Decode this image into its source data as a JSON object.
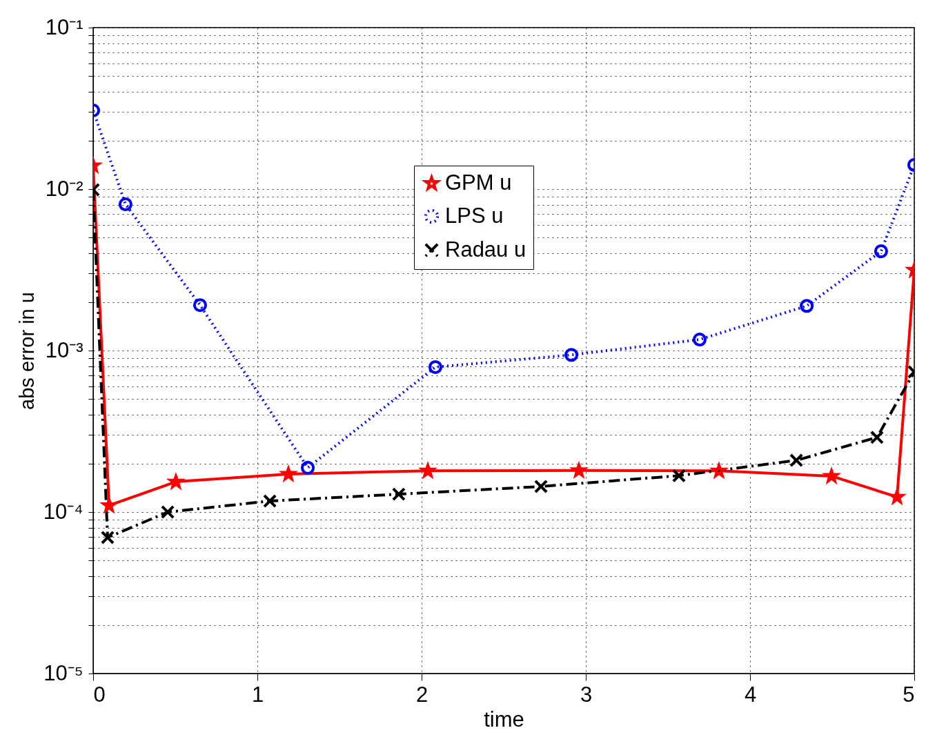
{
  "chart_data": {
    "type": "line",
    "xlabel": "time",
    "ylabel": "abs error in u",
    "log": "y",
    "grid": true,
    "legend": "top",
    "xlim": [
      0,
      5
    ],
    "xticks": [
      0,
      1,
      2,
      3,
      4,
      5
    ],
    "ylim": [
      1e-05,
      0.1
    ],
    "yticks": [
      {
        "value": 1e-05,
        "label": "10⁻⁵"
      },
      {
        "value": 2e-05,
        "label": null
      },
      {
        "value": 3e-05,
        "label": null
      },
      {
        "value": 4e-05,
        "label": null
      },
      {
        "value": 5e-05,
        "label": null
      },
      {
        "value": 6e-05,
        "label": null
      },
      {
        "value": 7e-05,
        "label": null
      },
      {
        "value": 8e-05,
        "label": null
      },
      {
        "value": 9e-05,
        "label": null
      },
      {
        "value": 0.0001,
        "label": "10⁻⁴"
      },
      {
        "value": 0.0002,
        "label": null
      },
      {
        "value": 0.0003,
        "label": null
      },
      {
        "value": 0.0004,
        "label": null
      },
      {
        "value": 0.0005,
        "label": null
      },
      {
        "value": 0.0006,
        "label": null
      },
      {
        "value": 0.0007,
        "label": null
      },
      {
        "value": 0.0008,
        "label": null
      },
      {
        "value": 0.0009,
        "label": null
      },
      {
        "value": 0.001,
        "label": "10⁻³"
      },
      {
        "value": 0.002,
        "label": null
      },
      {
        "value": 0.003,
        "label": null
      },
      {
        "value": 0.004,
        "label": null
      },
      {
        "value": 0.005,
        "label": null
      },
      {
        "value": 0.006,
        "label": null
      },
      {
        "value": 0.007,
        "label": null
      },
      {
        "value": 0.008,
        "label": null
      },
      {
        "value": 0.009,
        "label": null
      },
      {
        "value": 0.01,
        "label": "10⁻²"
      },
      {
        "value": 0.02,
        "label": null
      },
      {
        "value": 0.03,
        "label": null
      },
      {
        "value": 0.04,
        "label": null
      },
      {
        "value": 0.05,
        "label": null
      },
      {
        "value": 0.06,
        "label": null
      },
      {
        "value": 0.07,
        "label": null
      },
      {
        "value": 0.08,
        "label": null
      },
      {
        "value": 0.09,
        "label": null
      },
      {
        "value": 0.1,
        "label": "10⁻¹"
      }
    ],
    "series": [
      {
        "name": "GPM u",
        "color": "#ff0000",
        "marker": "star",
        "line_style": "solid",
        "x": [
          0,
          0.097,
          0.504,
          1.189,
          2.038,
          2.958,
          3.811,
          4.496,
          4.895,
          5
        ],
        "values": [
          0.014,
          0.00011,
          0.000154,
          0.000172,
          0.00018,
          0.000181,
          0.00018,
          0.000167,
          0.000124,
          0.00316
        ]
      },
      {
        "name": "LPS u",
        "color": "#0000ff",
        "marker": "circle",
        "line_style": "dotted",
        "x": [
          0,
          0.197,
          0.651,
          1.307,
          2.084,
          2.912,
          3.693,
          4.345,
          4.798,
          5
        ],
        "values": [
          0.0307,
          0.00805,
          0.00191,
          0.000188,
          0.00079,
          0.00094,
          0.00117,
          0.00189,
          0.00412,
          0.0141
        ]
      },
      {
        "name": "Radau u",
        "color": "#000000",
        "marker": "cross",
        "line_style": "dashed",
        "x": [
          0,
          0.088,
          0.454,
          1.076,
          1.861,
          2.727,
          3.567,
          4.282,
          4.773,
          5
        ],
        "values": [
          0.0099,
          6.95e-05,
          0.0001,
          0.000117,
          0.000129,
          0.000144,
          0.000168,
          0.000209,
          0.00029,
          0.000738
        ]
      }
    ]
  }
}
